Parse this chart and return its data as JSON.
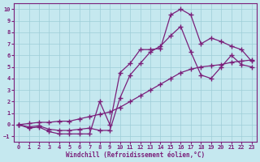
{
  "xlabel": "Windchill (Refroidissement éolien,°C)",
  "xlim": [
    -0.5,
    23.5
  ],
  "ylim": [
    -1.5,
    10.5
  ],
  "yticks": [
    -1,
    0,
    1,
    2,
    3,
    4,
    5,
    6,
    7,
    8,
    9,
    10
  ],
  "xticks": [
    0,
    1,
    2,
    3,
    4,
    5,
    6,
    7,
    8,
    9,
    10,
    11,
    12,
    13,
    14,
    15,
    16,
    17,
    18,
    19,
    20,
    21,
    22,
    23
  ],
  "bg_color": "#c5e8ef",
  "grid_color": "#9ecdd8",
  "line_color": "#7a1f7a",
  "curve1_x": [
    0,
    1,
    2,
    3,
    4,
    5,
    6,
    7,
    8,
    9,
    10,
    11,
    12,
    13,
    14,
    15,
    16,
    17,
    18,
    19,
    20,
    21,
    22,
    23
  ],
  "curve1_y": [
    0.0,
    -0.3,
    -0.2,
    -0.6,
    -0.8,
    -0.8,
    -0.8,
    -0.8,
    2.0,
    0.0,
    4.5,
    5.3,
    6.5,
    6.5,
    6.6,
    9.5,
    10.0,
    9.5,
    7.0,
    7.5,
    7.2,
    6.8,
    6.5,
    5.5
  ],
  "curve2_x": [
    0,
    1,
    2,
    3,
    4,
    5,
    6,
    7,
    8,
    9,
    10,
    11,
    12,
    13,
    14,
    15,
    16,
    17,
    18,
    19,
    20,
    21,
    22,
    23
  ],
  "curve2_y": [
    0.0,
    -0.2,
    -0.1,
    -0.4,
    -0.5,
    -0.5,
    -0.4,
    -0.3,
    -0.5,
    -0.5,
    2.3,
    4.3,
    5.3,
    6.3,
    6.8,
    7.7,
    8.5,
    6.3,
    4.3,
    4.0,
    5.0,
    6.0,
    5.2,
    5.0
  ],
  "curve3_x": [
    0,
    1,
    2,
    3,
    4,
    5,
    6,
    7,
    8,
    9,
    10,
    11,
    12,
    13,
    14,
    15,
    16,
    17,
    18,
    19,
    20,
    21,
    22,
    23
  ],
  "curve3_y": [
    0.0,
    0.1,
    0.2,
    0.2,
    0.3,
    0.3,
    0.5,
    0.7,
    0.9,
    1.1,
    1.5,
    2.0,
    2.5,
    3.0,
    3.5,
    4.0,
    4.5,
    4.8,
    5.0,
    5.1,
    5.2,
    5.4,
    5.5,
    5.6
  ]
}
